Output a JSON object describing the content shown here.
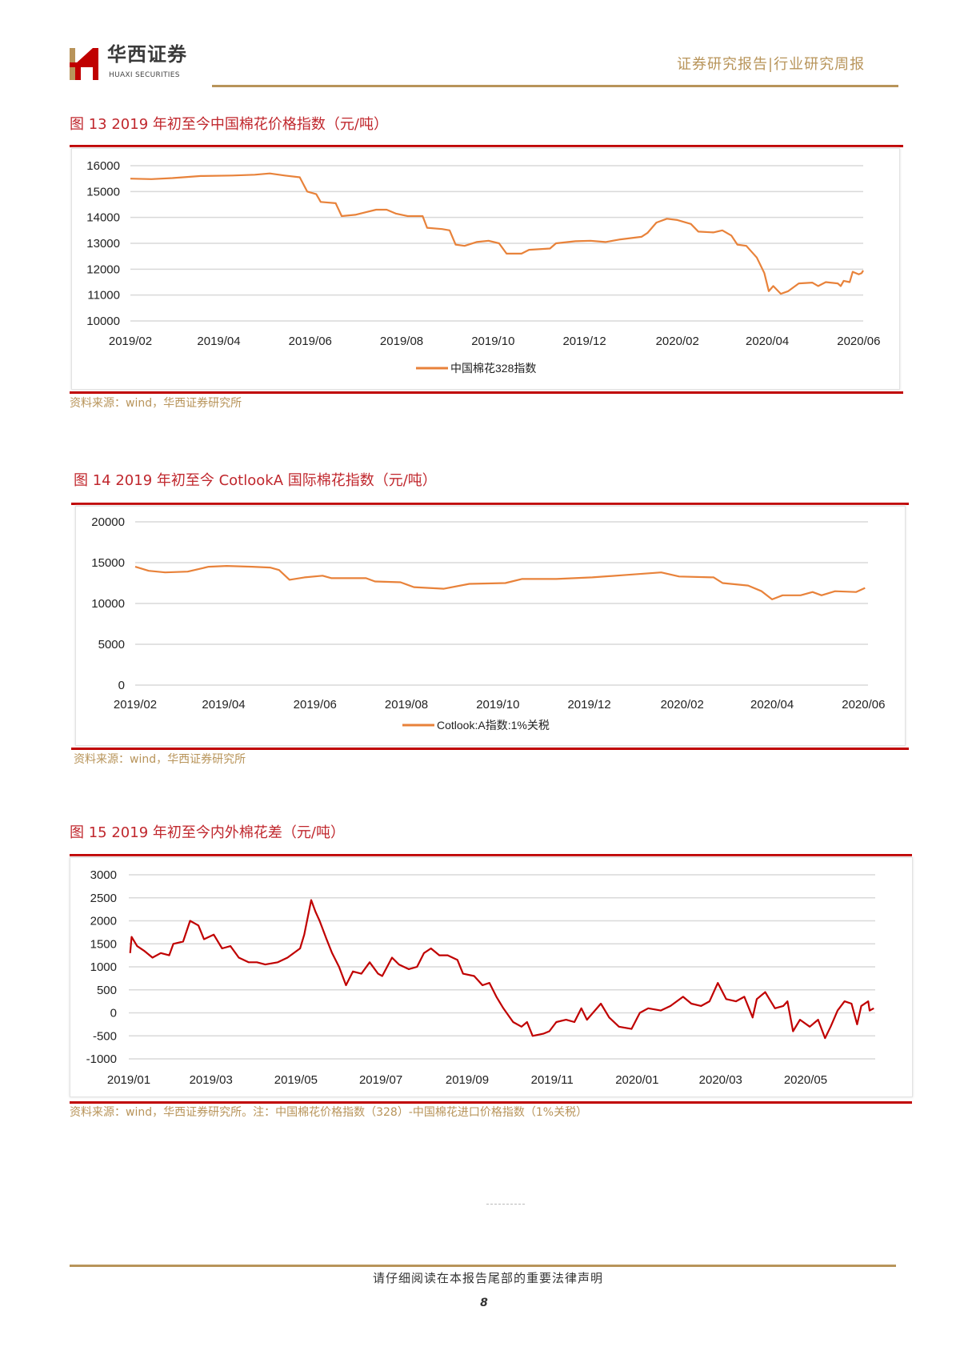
{
  "header": {
    "logo_cn": "华西证券",
    "logo_en": "HUAXI SECURITIES",
    "report_type": "证券研究报告|行业研究周报"
  },
  "colors": {
    "orange": "#E8823A",
    "red": "#C00000",
    "title_red": "#C0272D",
    "gold": "#B8945A"
  },
  "figures": [
    {
      "title": "图 13 2019 年初至今中国棉花价格指数（元/吨）",
      "source": "资料来源：wind，华西证券研究所"
    },
    {
      "title": "图 14 2019 年初至今 CotlookA 国际棉花指数（元/吨）",
      "source": "资料来源：wind，华西证券研究所"
    },
    {
      "title": "图 15 2019 年初至今内外棉花差（元/吨）",
      "source": "资料来源：wind，华西证券研究所。注：中国棉花价格指数（328）-中国棉花进口价格指数（1%关税）"
    }
  ],
  "chart_data": [
    {
      "type": "line",
      "title": "",
      "ylim": [
        10000,
        16000
      ],
      "yticks": [
        10000,
        11000,
        12000,
        13000,
        14000,
        15000,
        16000
      ],
      "xlim": [
        "2019-02-01",
        "2020-06-04"
      ],
      "xticks": [
        [
          "2019-02-01",
          "2019/02"
        ],
        [
          "2019-04-01",
          "2019/04"
        ],
        [
          "2019-06-01",
          "2019/06"
        ],
        [
          "2019-08-01",
          "2019/08"
        ],
        [
          "2019-10-01",
          "2019/10"
        ],
        [
          "2019-12-01",
          "2019/12"
        ],
        [
          "2020-02-01",
          "2020/02"
        ],
        [
          "2020-04-01",
          "2020/04"
        ],
        [
          "2020-06-01",
          "2020/06"
        ]
      ],
      "grid": true,
      "legend_position": "bottom",
      "series": [
        {
          "name": "中国棉花328指数",
          "color": "#E8823A",
          "points": [
            [
              "2019-02-01",
              15500
            ],
            [
              "2019-02-15",
              15480
            ],
            [
              "2019-03-01",
              15520
            ],
            [
              "2019-03-20",
              15600
            ],
            [
              "2019-04-10",
              15620
            ],
            [
              "2019-04-25",
              15650
            ],
            [
              "2019-05-05",
              15700
            ],
            [
              "2019-05-15",
              15620
            ],
            [
              "2019-05-25",
              15550
            ],
            [
              "2019-05-30",
              15000
            ],
            [
              "2019-06-05",
              14900
            ],
            [
              "2019-06-08",
              14600
            ],
            [
              "2019-06-18",
              14550
            ],
            [
              "2019-06-22",
              14050
            ],
            [
              "2019-07-01",
              14100
            ],
            [
              "2019-07-08",
              14200
            ],
            [
              "2019-07-15",
              14300
            ],
            [
              "2019-07-22",
              14300
            ],
            [
              "2019-07-28",
              14150
            ],
            [
              "2019-08-05",
              14050
            ],
            [
              "2019-08-15",
              14050
            ],
            [
              "2019-08-18",
              13600
            ],
            [
              "2019-08-28",
              13550
            ],
            [
              "2019-09-02",
              13500
            ],
            [
              "2019-09-06",
              12950
            ],
            [
              "2019-09-12",
              12900
            ],
            [
              "2019-09-20",
              13050
            ],
            [
              "2019-09-28",
              13100
            ],
            [
              "2019-10-05",
              13000
            ],
            [
              "2019-10-10",
              12600
            ],
            [
              "2019-10-20",
              12600
            ],
            [
              "2019-10-25",
              12750
            ],
            [
              "2019-11-08",
              12800
            ],
            [
              "2019-11-12",
              13000
            ],
            [
              "2019-11-25",
              13080
            ],
            [
              "2019-12-05",
              13100
            ],
            [
              "2019-12-15",
              13050
            ],
            [
              "2019-12-25",
              13150
            ],
            [
              "2020-01-08",
              13250
            ],
            [
              "2020-01-12",
              13400
            ],
            [
              "2020-01-18",
              13800
            ],
            [
              "2020-01-25",
              13950
            ],
            [
              "2020-02-01",
              13900
            ],
            [
              "2020-02-10",
              13750
            ],
            [
              "2020-02-15",
              13450
            ],
            [
              "2020-02-25",
              13420
            ],
            [
              "2020-03-02",
              13500
            ],
            [
              "2020-03-08",
              13300
            ],
            [
              "2020-03-12",
              12950
            ],
            [
              "2020-03-18",
              12900
            ],
            [
              "2020-03-25",
              12450
            ],
            [
              "2020-03-30",
              11850
            ],
            [
              "2020-04-02",
              11150
            ],
            [
              "2020-04-05",
              11350
            ],
            [
              "2020-04-10",
              11050
            ],
            [
              "2020-04-15",
              11150
            ],
            [
              "2020-04-22",
              11450
            ],
            [
              "2020-05-01",
              11480
            ],
            [
              "2020-05-05",
              11350
            ],
            [
              "2020-05-10",
              11500
            ],
            [
              "2020-05-18",
              11450
            ],
            [
              "2020-05-20",
              11350
            ],
            [
              "2020-05-22",
              11550
            ],
            [
              "2020-05-26",
              11500
            ],
            [
              "2020-05-28",
              11900
            ],
            [
              "2020-06-01",
              11800
            ],
            [
              "2020-06-03",
              11850
            ],
            [
              "2020-06-04",
              11950
            ]
          ]
        }
      ]
    },
    {
      "type": "line",
      "title": "",
      "ylim": [
        0,
        20000
      ],
      "yticks": [
        0,
        5000,
        10000,
        15000,
        20000
      ],
      "xlim": [
        "2019-02-01",
        "2020-06-04"
      ],
      "xticks": [
        [
          "2019-02-01",
          "2019/02"
        ],
        [
          "2019-04-01",
          "2019/04"
        ],
        [
          "2019-06-01",
          "2019/06"
        ],
        [
          "2019-08-01",
          "2019/08"
        ],
        [
          "2019-10-01",
          "2019/10"
        ],
        [
          "2019-12-01",
          "2019/12"
        ],
        [
          "2020-02-01",
          "2020/02"
        ],
        [
          "2020-04-01",
          "2020/04"
        ],
        [
          "2020-06-01",
          "2020/06"
        ]
      ],
      "grid": true,
      "legend_position": "bottom",
      "series": [
        {
          "name": "Cotlook:A指数:1%关税",
          "color": "#E8823A",
          "points": [
            [
              "2019-02-01",
              14500
            ],
            [
              "2019-02-10",
              14000
            ],
            [
              "2019-02-21",
              13800
            ],
            [
              "2019-03-08",
              13900
            ],
            [
              "2019-03-22",
              14500
            ],
            [
              "2019-04-03",
              14600
            ],
            [
              "2019-04-20",
              14500
            ],
            [
              "2019-05-02",
              14400
            ],
            [
              "2019-05-08",
              14100
            ],
            [
              "2019-05-15",
              12900
            ],
            [
              "2019-05-25",
              13200
            ],
            [
              "2019-06-06",
              13400
            ],
            [
              "2019-06-12",
              13100
            ],
            [
              "2019-07-05",
              13100
            ],
            [
              "2019-07-11",
              12700
            ],
            [
              "2019-07-28",
              12600
            ],
            [
              "2019-08-06",
              12000
            ],
            [
              "2019-08-26",
              11800
            ],
            [
              "2019-09-12",
              12400
            ],
            [
              "2019-10-06",
              12500
            ],
            [
              "2019-10-17",
              13000
            ],
            [
              "2019-11-09",
              13000
            ],
            [
              "2019-12-03",
              13200
            ],
            [
              "2019-12-26",
              13500
            ],
            [
              "2020-01-18",
              13800
            ],
            [
              "2020-01-30",
              13300
            ],
            [
              "2020-02-22",
              13200
            ],
            [
              "2020-02-28",
              12500
            ],
            [
              "2020-03-16",
              12200
            ],
            [
              "2020-03-25",
              11500
            ],
            [
              "2020-04-01",
              10500
            ],
            [
              "2020-04-08",
              11000
            ],
            [
              "2020-04-20",
              11000
            ],
            [
              "2020-04-28",
              11400
            ],
            [
              "2020-05-04",
              11000
            ],
            [
              "2020-05-13",
              11500
            ],
            [
              "2020-05-27",
              11400
            ],
            [
              "2020-06-02",
              11900
            ]
          ]
        }
      ]
    },
    {
      "type": "line",
      "title": "",
      "ylim": [
        -1000,
        3000
      ],
      "yticks": [
        -1000,
        -500,
        0,
        500,
        1000,
        1500,
        2000,
        2500,
        3000
      ],
      "xlim": [
        "2019-01-01",
        "2020-06-20"
      ],
      "xticks": [
        [
          "2019-01-01",
          "2019/01"
        ],
        [
          "2019-03-01",
          "2019/03"
        ],
        [
          "2019-05-01",
          "2019/05"
        ],
        [
          "2019-07-01",
          "2019/07"
        ],
        [
          "2019-09-01",
          "2019/09"
        ],
        [
          "2019-11-01",
          "2019/11"
        ],
        [
          "2020-01-01",
          "2020/01"
        ],
        [
          "2020-03-01",
          "2020/03"
        ],
        [
          "2020-05-01",
          "2020/05"
        ]
      ],
      "grid": true,
      "series": [
        {
          "color": "#C00000",
          "points": [
            [
              "2019-01-02",
              1300
            ],
            [
              "2019-01-03",
              1650
            ],
            [
              "2019-01-07",
              1450
            ],
            [
              "2019-01-12",
              1350
            ],
            [
              "2019-01-18",
              1200
            ],
            [
              "2019-01-24",
              1300
            ],
            [
              "2019-01-30",
              1250
            ],
            [
              "2019-02-02",
              1500
            ],
            [
              "2019-02-09",
              1550
            ],
            [
              "2019-02-14",
              2000
            ],
            [
              "2019-02-20",
              1900
            ],
            [
              "2019-02-24",
              1600
            ],
            [
              "2019-03-03",
              1700
            ],
            [
              "2019-03-09",
              1400
            ],
            [
              "2019-03-15",
              1450
            ],
            [
              "2019-03-21",
              1200
            ],
            [
              "2019-03-28",
              1100
            ],
            [
              "2019-04-03",
              1100
            ],
            [
              "2019-04-09",
              1050
            ],
            [
              "2019-04-18",
              1100
            ],
            [
              "2019-04-25",
              1200
            ],
            [
              "2019-05-04",
              1400
            ],
            [
              "2019-05-07",
              1700
            ],
            [
              "2019-05-12",
              2450
            ],
            [
              "2019-05-15",
              2200
            ],
            [
              "2019-05-18",
              2000
            ],
            [
              "2019-05-23",
              1600
            ],
            [
              "2019-05-27",
              1300
            ],
            [
              "2019-06-01",
              1000
            ],
            [
              "2019-06-06",
              600
            ],
            [
              "2019-06-11",
              900
            ],
            [
              "2019-06-17",
              850
            ],
            [
              "2019-06-23",
              1100
            ],
            [
              "2019-06-29",
              850
            ],
            [
              "2019-07-02",
              800
            ],
            [
              "2019-07-09",
              1200
            ],
            [
              "2019-07-14",
              1050
            ],
            [
              "2019-07-21",
              950
            ],
            [
              "2019-07-27",
              1000
            ],
            [
              "2019-08-01",
              1300
            ],
            [
              "2019-08-06",
              1400
            ],
            [
              "2019-08-12",
              1250
            ],
            [
              "2019-08-18",
              1250
            ],
            [
              "2019-08-25",
              1150
            ],
            [
              "2019-08-29",
              850
            ],
            [
              "2019-09-06",
              800
            ],
            [
              "2019-09-12",
              600
            ],
            [
              "2019-09-17",
              650
            ],
            [
              "2019-09-22",
              350
            ],
            [
              "2019-09-27",
              100
            ],
            [
              "2019-10-04",
              -200
            ],
            [
              "2019-10-10",
              -300
            ],
            [
              "2019-10-14",
              -200
            ],
            [
              "2019-10-18",
              -500
            ],
            [
              "2019-10-26",
              -450
            ],
            [
              "2019-10-30",
              -400
            ],
            [
              "2019-11-04",
              -200
            ],
            [
              "2019-11-11",
              -150
            ],
            [
              "2019-11-17",
              -200
            ],
            [
              "2019-11-22",
              100
            ],
            [
              "2019-11-26",
              -150
            ],
            [
              "2019-12-06",
              200
            ],
            [
              "2019-12-12",
              -100
            ],
            [
              "2019-12-19",
              -300
            ],
            [
              "2019-12-28",
              -350
            ],
            [
              "2020-01-03",
              0
            ],
            [
              "2020-01-09",
              100
            ],
            [
              "2020-01-18",
              50
            ],
            [
              "2020-01-25",
              150
            ],
            [
              "2020-02-03",
              350
            ],
            [
              "2020-02-09",
              200
            ],
            [
              "2020-02-16",
              150
            ],
            [
              "2020-02-22",
              250
            ],
            [
              "2020-02-28",
              650
            ],
            [
              "2020-03-05",
              300
            ],
            [
              "2020-03-12",
              250
            ],
            [
              "2020-03-18",
              350
            ],
            [
              "2020-03-24",
              -100
            ],
            [
              "2020-03-27",
              300
            ],
            [
              "2020-04-02",
              450
            ],
            [
              "2020-04-09",
              100
            ],
            [
              "2020-04-15",
              150
            ],
            [
              "2020-04-18",
              250
            ],
            [
              "2020-04-22",
              -400
            ],
            [
              "2020-04-27",
              -150
            ],
            [
              "2020-05-04",
              -300
            ],
            [
              "2020-05-10",
              -150
            ],
            [
              "2020-05-15",
              -550
            ],
            [
              "2020-05-19",
              -300
            ],
            [
              "2020-05-24",
              50
            ],
            [
              "2020-05-29",
              250
            ],
            [
              "2020-06-03",
              200
            ],
            [
              "2020-06-07",
              -250
            ],
            [
              "2020-06-10",
              150
            ],
            [
              "2020-06-15",
              250
            ],
            [
              "2020-06-16",
              50
            ],
            [
              "2020-06-19",
              100
            ]
          ]
        }
      ]
    }
  ],
  "footer": {
    "disclaimer": "请仔细阅读在本报告尾部的重要法律声明",
    "page": "8"
  }
}
